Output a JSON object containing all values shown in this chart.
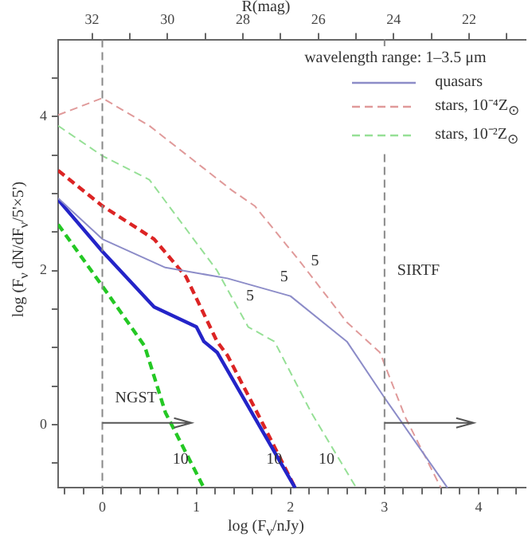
{
  "chart_data": {
    "type": "line",
    "xlabel": "log (F$_{ν}$/nJy)",
    "ylabel": "log (F$_{ν}$ dN/dF$_{ν}$/5'×5')",
    "x2label": "R(mag)",
    "legend_title": "wavelength range:  1–3.5 μm",
    "legend": "top right",
    "line_style": "solid",
    "marker": "none",
    "grid": false,
    "xlim": [
      -0.47,
      4.5
    ],
    "ylim": [
      -0.82,
      5.0
    ],
    "x2lim": [
      32.9,
      20.5
    ],
    "xticks": [
      {
        "value": -0.4,
        "label": null
      },
      {
        "value": -0.2,
        "label": null
      },
      0,
      {
        "value": 0.2,
        "label": null
      },
      {
        "value": 0.4,
        "label": null
      },
      {
        "value": 0.6,
        "label": null
      },
      {
        "value": 0.8,
        "label": null
      },
      1,
      {
        "value": 1.2,
        "label": null
      },
      {
        "value": 1.4,
        "label": null
      },
      {
        "value": 1.6,
        "label": null
      },
      {
        "value": 1.8,
        "label": null
      },
      2,
      {
        "value": 2.2,
        "label": null
      },
      {
        "value": 2.4,
        "label": null
      },
      {
        "value": 2.6,
        "label": null
      },
      {
        "value": 2.8,
        "label": null
      },
      3,
      {
        "value": 3.2,
        "label": null
      },
      {
        "value": 3.4,
        "label": null
      },
      {
        "value": 3.6,
        "label": null
      },
      {
        "value": 3.8,
        "label": null
      },
      4,
      {
        "value": 4.2,
        "label": null
      },
      {
        "value": 4.4,
        "label": null
      }
    ],
    "x2ticks": [
      32,
      {
        "value": 31,
        "label": null
      },
      30,
      {
        "value": 29,
        "label": null
      },
      28,
      {
        "value": 27,
        "label": null
      },
      26,
      {
        "value": 25,
        "label": null
      },
      24,
      {
        "value": 23,
        "label": null
      },
      22,
      {
        "value": 21,
        "label": null
      }
    ],
    "yticks": [
      {
        "value": -0.5,
        "label": null
      },
      0,
      {
        "value": 0.5,
        "label": null
      },
      {
        "value": 1,
        "label": null
      },
      {
        "value": 1.5,
        "label": null
      },
      2,
      {
        "value": 2.5,
        "label": null
      },
      {
        "value": 3,
        "label": null
      },
      {
        "value": 3.5,
        "label": null
      },
      4,
      {
        "value": 4.5,
        "label": null
      }
    ],
    "series": [
      {
        "name": "quasars",
        "color": "#8c8cc8",
        "x": [
          -0.47,
          0,
          0.67,
          1.33,
          2,
          2.6,
          3,
          3.67
        ],
        "values": [
          2.94,
          2.41,
          2.04,
          1.9,
          1.67,
          1.08,
          0.35,
          -0.82
        ]
      },
      {
        "color": "#2424c8",
        "x": [
          -0.47,
          0,
          0.55,
          1,
          1.08,
          1.22,
          1.55,
          2.05
        ],
        "values": [
          2.92,
          2.25,
          1.53,
          1.27,
          1.08,
          0.94,
          0.24,
          -0.82
        ]
      },
      {
        "name": "stars, 10⁻⁴Z$_{⊙}$",
        "color": "#e09a9a",
        "line_style": "dashed",
        "x": [
          -0.47,
          0,
          0.5,
          1.38,
          1.62,
          2.1,
          2.6,
          2.95,
          3.22,
          3.6
        ],
        "values": [
          4.02,
          4.24,
          3.88,
          3.04,
          2.84,
          2.12,
          1.33,
          0.94,
          0.1,
          -0.82
        ]
      },
      {
        "color": "#dc2424",
        "line_style": "dashed",
        "x": [
          -0.47,
          0,
          0.55,
          0.89,
          1.22,
          1.33,
          1.67,
          2.05
        ],
        "values": [
          3.3,
          2.84,
          2.41,
          1.92,
          1.08,
          0.9,
          0.1,
          -0.82
        ]
      },
      {
        "name": "stars, 10⁻²Z$_{⊙}$",
        "color": "#96e096",
        "line_style": "dashed",
        "x": [
          -0.47,
          0,
          0.5,
          1.22,
          1.55,
          1.83,
          2.22,
          2.7
        ],
        "values": [
          3.88,
          3.49,
          3.18,
          2.0,
          1.27,
          1.08,
          0.16,
          -0.82
        ]
      },
      {
        "color": "#24c824",
        "line_style": "dashed",
        "x": [
          -0.47,
          0,
          0.45,
          0.67,
          1.08
        ],
        "values": [
          2.6,
          1.8,
          1.02,
          0.16,
          -0.82
        ]
      }
    ],
    "ref_lines": [
      {
        "axis": "x",
        "value": 0,
        "label": "NGST",
        "color": "#888888",
        "line_style": "dashed"
      },
      {
        "axis": "x",
        "value": 3,
        "label": "SIRTF",
        "color": "#888888",
        "line_style": "dashed"
      }
    ],
    "annotations": [
      "5",
      "5",
      "5",
      "10",
      "10",
      "10"
    ]
  }
}
